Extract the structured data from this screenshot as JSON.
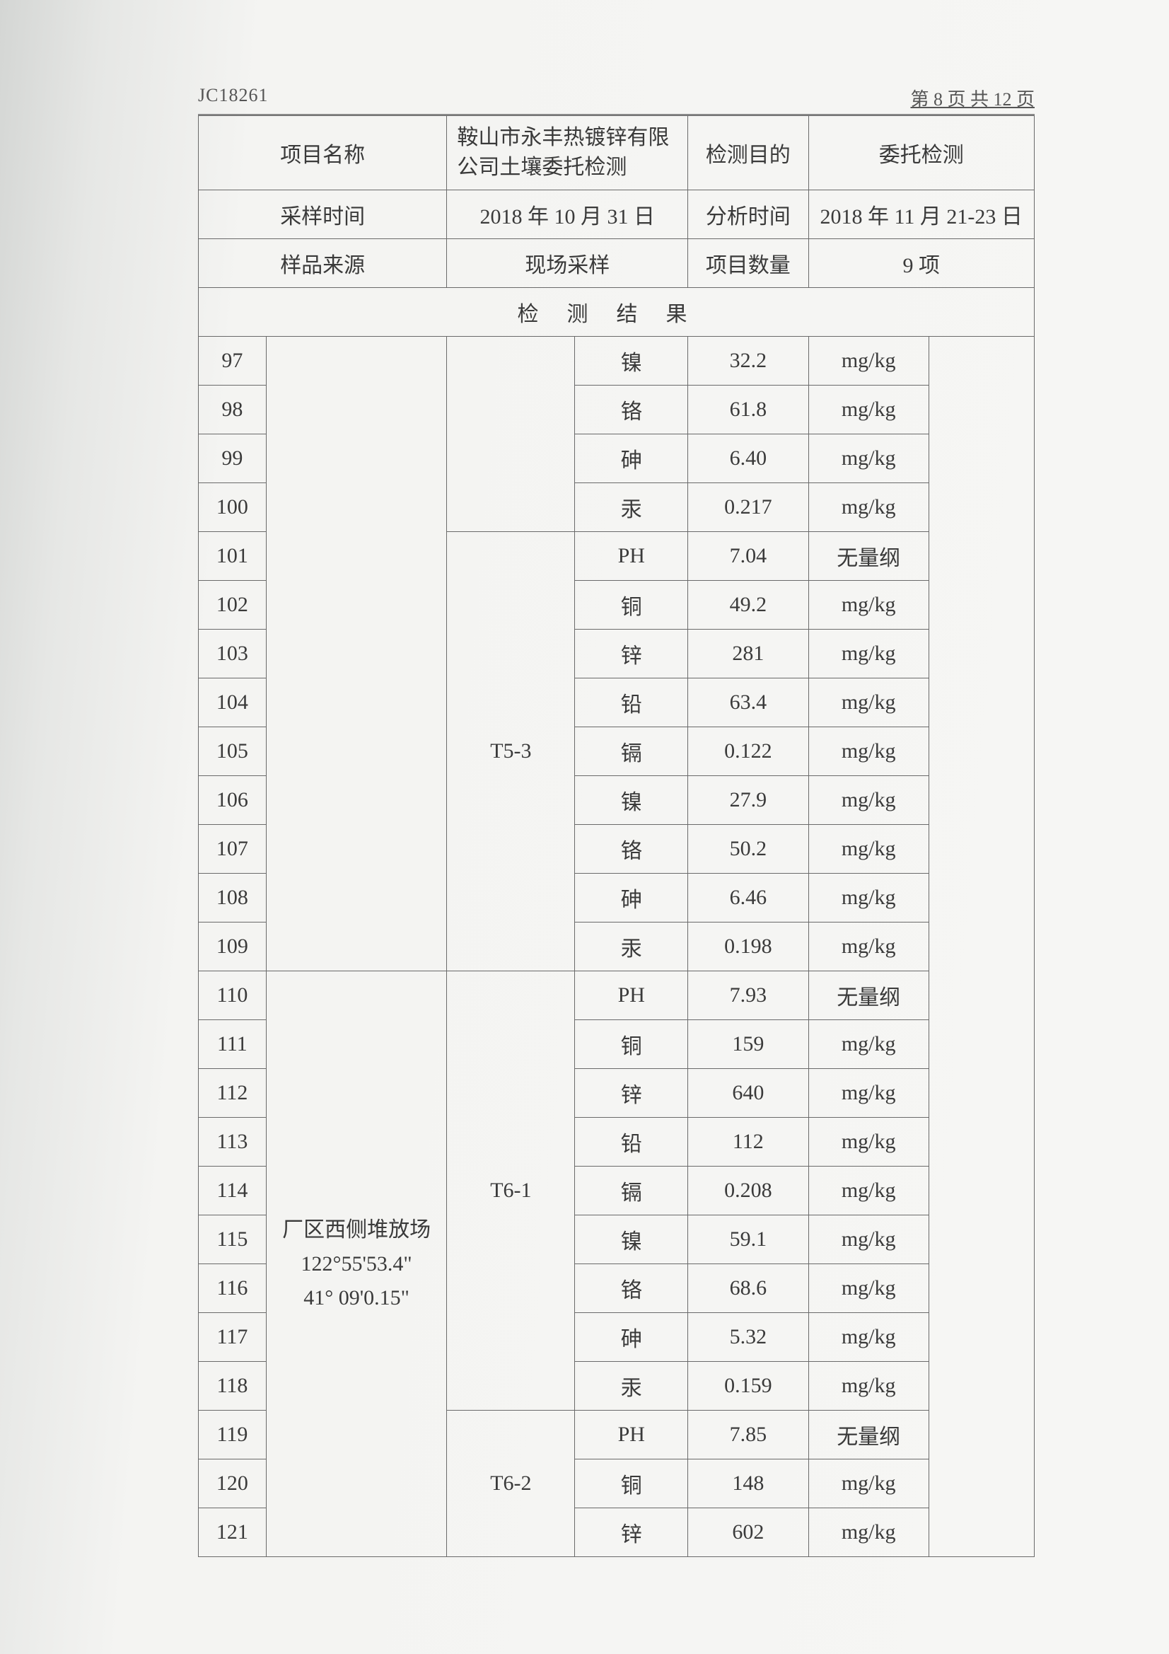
{
  "doc_id": "JC18261",
  "page_indicator": "第 8 页 共 12 页",
  "meta": {
    "row1": {
      "label1": "项目名称",
      "value1": "鞍山市永丰热镀锌有限公司土壤委托检测",
      "label2": "检测目的",
      "value2": "委托检测"
    },
    "row2": {
      "label1": "采样时间",
      "value1": "2018 年 10 月 31 日",
      "label2": "分析时间",
      "value2": "2018 年 11 月 21-23 日"
    },
    "row3": {
      "label1": "样品来源",
      "value1": "现场采样",
      "label2": "项目数量",
      "value2": "9 项"
    }
  },
  "section_title": "检测结果",
  "location_text": "厂区西侧堆放场\n122°55'53.4\"\n41° 09'0.15\"",
  "groups": [
    {
      "sample": "",
      "rows": [
        {
          "idx": "97",
          "param": "镍",
          "value": "32.2",
          "unit": "mg/kg"
        },
        {
          "idx": "98",
          "param": "铬",
          "value": "61.8",
          "unit": "mg/kg"
        },
        {
          "idx": "99",
          "param": "砷",
          "value": "6.40",
          "unit": "mg/kg"
        },
        {
          "idx": "100",
          "param": "汞",
          "value": "0.217",
          "unit": "mg/kg"
        }
      ]
    },
    {
      "sample": "T5-3",
      "rows": [
        {
          "idx": "101",
          "param": "PH",
          "value": "7.04",
          "unit": "无量纲"
        },
        {
          "idx": "102",
          "param": "铜",
          "value": "49.2",
          "unit": "mg/kg"
        },
        {
          "idx": "103",
          "param": "锌",
          "value": "281",
          "unit": "mg/kg"
        },
        {
          "idx": "104",
          "param": "铅",
          "value": "63.4",
          "unit": "mg/kg"
        },
        {
          "idx": "105",
          "param": "镉",
          "value": "0.122",
          "unit": "mg/kg"
        },
        {
          "idx": "106",
          "param": "镍",
          "value": "27.9",
          "unit": "mg/kg"
        },
        {
          "idx": "107",
          "param": "铬",
          "value": "50.2",
          "unit": "mg/kg"
        },
        {
          "idx": "108",
          "param": "砷",
          "value": "6.46",
          "unit": "mg/kg"
        },
        {
          "idx": "109",
          "param": "汞",
          "value": "0.198",
          "unit": "mg/kg"
        }
      ]
    },
    {
      "sample": "T6-1",
      "rows": [
        {
          "idx": "110",
          "param": "PH",
          "value": "7.93",
          "unit": "无量纲"
        },
        {
          "idx": "111",
          "param": "铜",
          "value": "159",
          "unit": "mg/kg"
        },
        {
          "idx": "112",
          "param": "锌",
          "value": "640",
          "unit": "mg/kg"
        },
        {
          "idx": "113",
          "param": "铅",
          "value": "112",
          "unit": "mg/kg"
        },
        {
          "idx": "114",
          "param": "镉",
          "value": "0.208",
          "unit": "mg/kg"
        },
        {
          "idx": "115",
          "param": "镍",
          "value": "59.1",
          "unit": "mg/kg"
        },
        {
          "idx": "116",
          "param": "铬",
          "value": "68.6",
          "unit": "mg/kg"
        },
        {
          "idx": "117",
          "param": "砷",
          "value": "5.32",
          "unit": "mg/kg"
        },
        {
          "idx": "118",
          "param": "汞",
          "value": "0.159",
          "unit": "mg/kg"
        }
      ]
    },
    {
      "sample": "T6-2",
      "rows": [
        {
          "idx": "119",
          "param": "PH",
          "value": "7.85",
          "unit": "无量纲"
        },
        {
          "idx": "120",
          "param": "铜",
          "value": "148",
          "unit": "mg/kg"
        },
        {
          "idx": "121",
          "param": "锌",
          "value": "602",
          "unit": "mg/kg"
        }
      ]
    }
  ],
  "colors": {
    "border": "#6a6a6a",
    "text": "#3a3a3a",
    "page_bg": "#f4f4f2"
  }
}
